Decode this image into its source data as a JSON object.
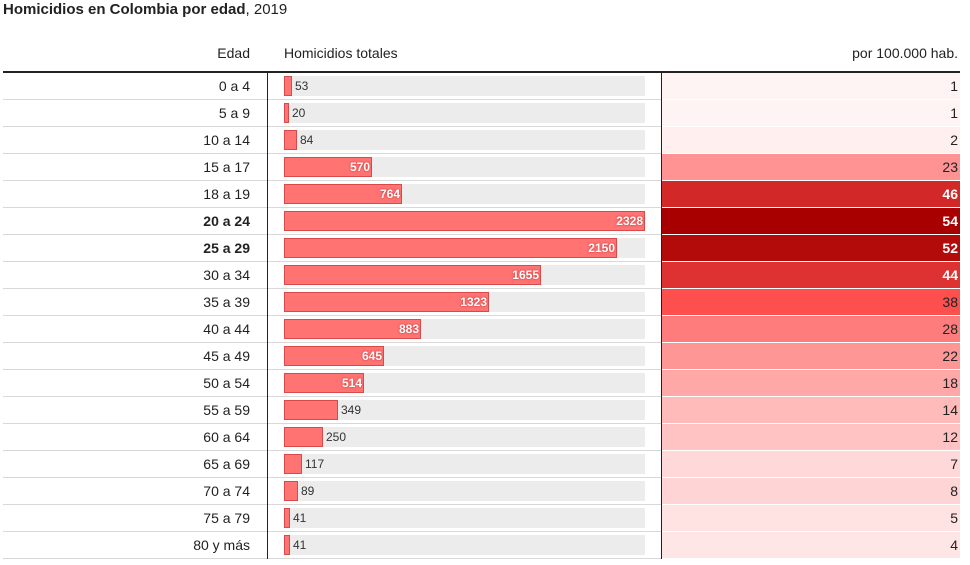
{
  "title": {
    "bold": "Homicidios en Colombia por edad",
    "rest": ", 2019"
  },
  "headers": {
    "age": "Edad",
    "total": "Homicidios totales",
    "rate": "por 100.000 hab."
  },
  "chart_data": {
    "type": "table",
    "columns": [
      "Edad",
      "Homicidios totales",
      "por 100.000 hab."
    ],
    "categories": [
      "0 a 4",
      "5 a 9",
      "10 a 14",
      "15 a 17",
      "18 a 19",
      "20 a 24",
      "25 a 29",
      "30 a 34",
      "35 a 39",
      "40 a 44",
      "45 a 49",
      "50 a 54",
      "55 a 59",
      "60 a 64",
      "65 a 69",
      "70 a 74",
      "75 a 79",
      "80 y más"
    ],
    "highlighted": [
      "20 a 24",
      "25 a 29"
    ],
    "series": [
      {
        "name": "Homicidios totales",
        "values": [
          53,
          20,
          84,
          570,
          764,
          2328,
          2150,
          1655,
          1323,
          883,
          645,
          514,
          349,
          250,
          117,
          89,
          41,
          41
        ]
      },
      {
        "name": "por 100.000 hab.",
        "values": [
          1,
          1,
          2,
          23,
          46,
          54,
          52,
          44,
          38,
          28,
          22,
          18,
          14,
          12,
          7,
          8,
          5,
          4
        ]
      }
    ],
    "bar_max": 2328,
    "colors": {
      "bar": "#ff7373",
      "bar_edge": "#d84a4a",
      "track": "#ececec",
      "heat_low": "#fff8f8",
      "heat_high": "#a80000"
    }
  }
}
